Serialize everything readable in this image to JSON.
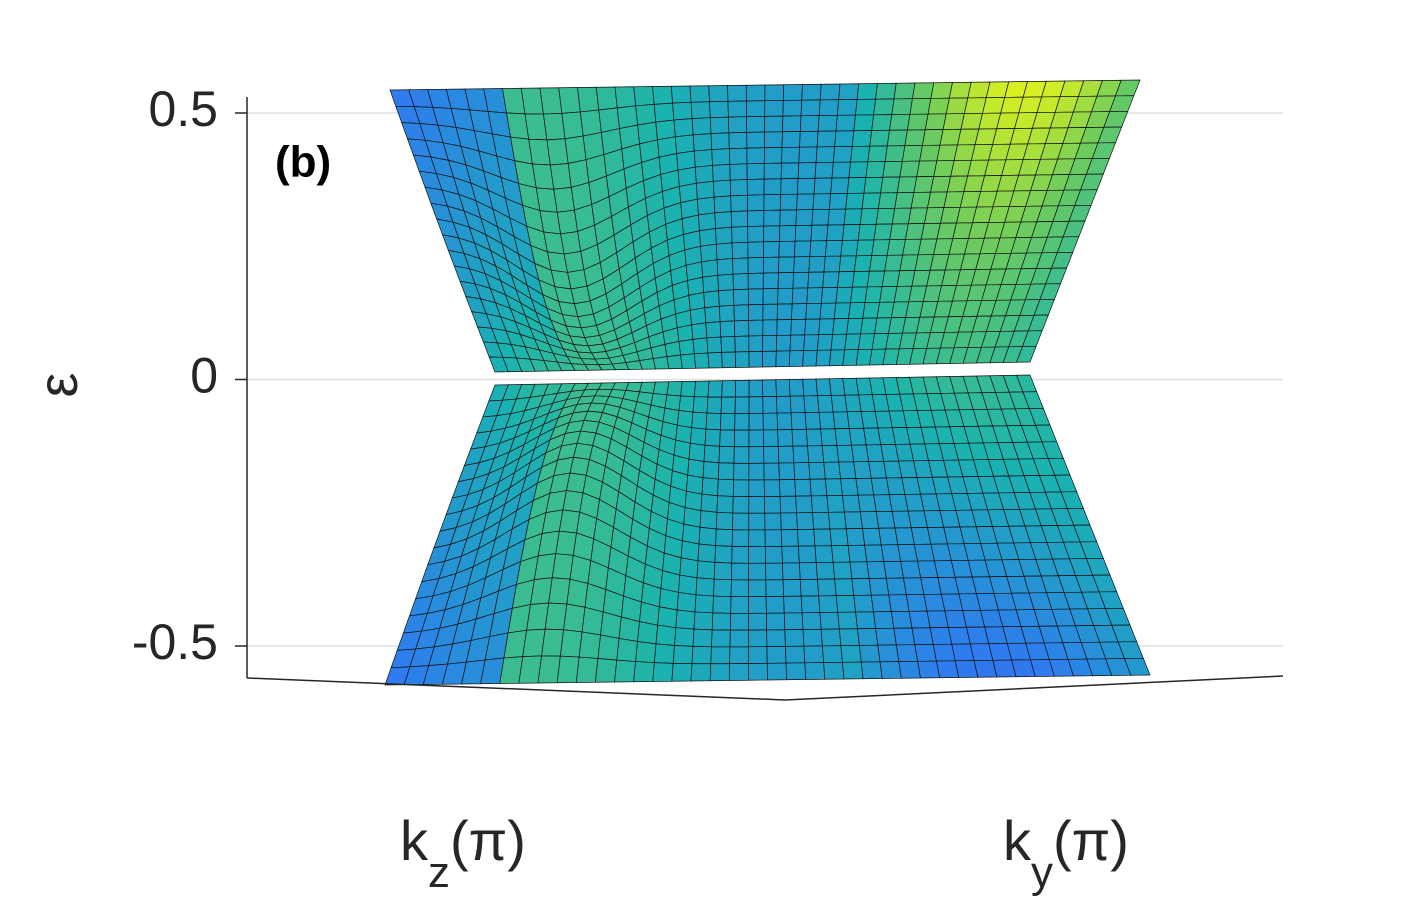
{
  "chart_data": {
    "type": "surface",
    "panel_label": "(b)",
    "ylabel": "ε",
    "xlabel": {
      "base": "k",
      "sub": "z",
      "unit": "(π)"
    },
    "x2label": {
      "base": "k",
      "sub": "y",
      "unit": "(π)"
    },
    "ylim": [
      -0.56,
      0.53
    ],
    "yticks": [
      0.5,
      0,
      -0.5
    ],
    "grid": true
  }
}
